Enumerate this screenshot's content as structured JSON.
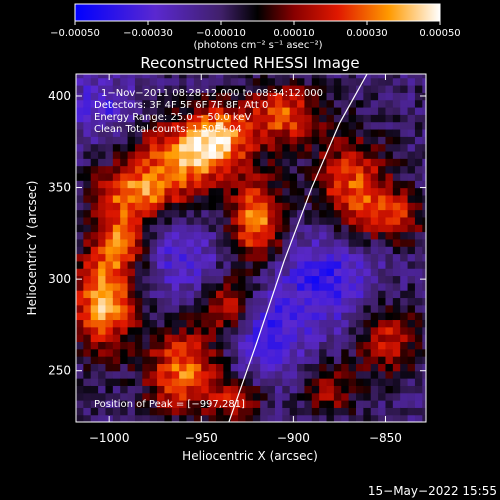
{
  "colorbar": {
    "ticks": [
      {
        "value": -0.0005,
        "label": "−0.00050"
      },
      {
        "value": -0.0003,
        "label": "−0.00030"
      },
      {
        "value": -0.0001,
        "label": "−0.00010"
      },
      {
        "value": 0.0001,
        "label": "0.00010"
      },
      {
        "value": 0.0003,
        "label": "0.00030"
      },
      {
        "value": 0.0005,
        "label": "0.00050"
      }
    ],
    "unit_label": "(photons cm⁻² s⁻¹ asec⁻²)",
    "range": [
      -0.0005,
      0.0005
    ]
  },
  "info": {
    "time_range": "1−Nov−2011 08:28:12.000 to 08:34:12.000",
    "detectors": "Detectors: 3F 4F 5F 6F 7F 8F, Att 0",
    "energy": "Energy Range: 25.0 − 50.0 keV",
    "clean_counts": "Clean     Total counts: 1.50E+04",
    "peak": "Position of Peak = [−997,281]"
  },
  "footer": {
    "date": "15−May−2022 15:55"
  },
  "chart_data": {
    "type": "heatmap",
    "title": "Reconstructed RHESSI Image",
    "xlabel": "Heliocentric X (arcsec)",
    "ylabel": "Heliocentric Y (arcsec)",
    "xlim": [
      -1018,
      -828
    ],
    "ylim": [
      222,
      412
    ],
    "x_ticks": [
      {
        "value": -1000,
        "label": "−1000"
      },
      {
        "value": -950,
        "label": "−950"
      },
      {
        "value": -900,
        "label": "−900"
      },
      {
        "value": -850,
        "label": "−850"
      }
    ],
    "y_ticks": [
      {
        "value": 250,
        "label": "250"
      },
      {
        "value": 300,
        "label": "300"
      },
      {
        "value": 350,
        "label": "350"
      },
      {
        "value": 400,
        "label": "400"
      }
    ],
    "peak": [
      -997,
      281
    ],
    "limb_curve": [
      [
        -935,
        222
      ],
      [
        -920,
        265
      ],
      [
        -905,
        310
      ],
      [
        -890,
        350
      ],
      [
        -875,
        385
      ],
      [
        -860,
        412
      ]
    ],
    "grid": false,
    "colormap": [
      "#0000ff",
      "#6a2fbf",
      "#3a1a6a",
      "#000000",
      "#8a0000",
      "#ff3000",
      "#ffa000",
      "#ffffff"
    ],
    "blobs": [
      {
        "x": -1003,
        "y": 288,
        "sx": 12,
        "sy": 18,
        "a": 1.0
      },
      {
        "x": -995,
        "y": 322,
        "sx": 10,
        "sy": 12,
        "a": 0.75
      },
      {
        "x": -985,
        "y": 348,
        "sx": 16,
        "sy": 10,
        "a": 0.8
      },
      {
        "x": -960,
        "y": 368,
        "sx": 18,
        "sy": 14,
        "a": 0.85
      },
      {
        "x": -940,
        "y": 378,
        "sx": 12,
        "sy": 12,
        "a": 0.8
      },
      {
        "x": -920,
        "y": 332,
        "sx": 10,
        "sy": 16,
        "a": 0.9
      },
      {
        "x": -905,
        "y": 390,
        "sx": 14,
        "sy": 12,
        "a": 0.75
      },
      {
        "x": -960,
        "y": 250,
        "sx": 14,
        "sy": 16,
        "a": 0.85
      },
      {
        "x": -935,
        "y": 285,
        "sx": 10,
        "sy": 12,
        "a": 0.65
      },
      {
        "x": -868,
        "y": 352,
        "sx": 14,
        "sy": 18,
        "a": 0.75
      },
      {
        "x": -845,
        "y": 335,
        "sx": 12,
        "sy": 10,
        "a": 0.6
      },
      {
        "x": -850,
        "y": 268,
        "sx": 12,
        "sy": 14,
        "a": 0.6
      },
      {
        "x": -880,
        "y": 240,
        "sx": 10,
        "sy": 10,
        "a": 0.5
      },
      {
        "x": -930,
        "y": 235,
        "sx": 10,
        "sy": 8,
        "a": 0.55
      },
      {
        "x": -915,
        "y": 270,
        "sx": 16,
        "sy": 18,
        "a": -0.5
      },
      {
        "x": -880,
        "y": 300,
        "sx": 18,
        "sy": 18,
        "a": -0.55
      },
      {
        "x": -1005,
        "y": 395,
        "sx": 14,
        "sy": 12,
        "a": -0.4
      },
      {
        "x": -960,
        "y": 310,
        "sx": 14,
        "sy": 14,
        "a": -0.4
      }
    ]
  }
}
